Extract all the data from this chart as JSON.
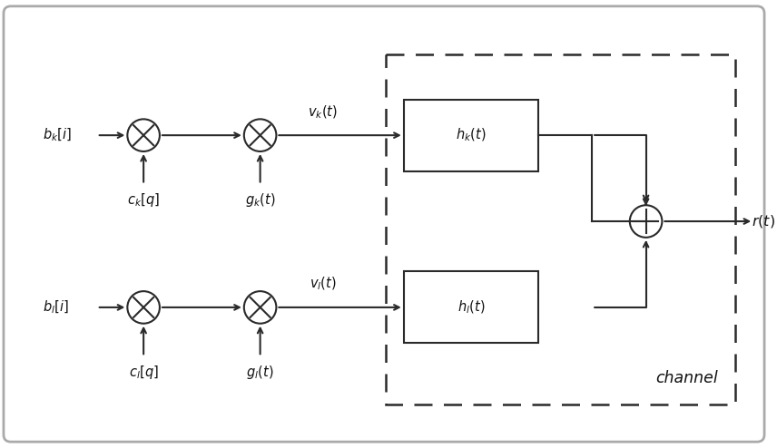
{
  "fig_width": 8.56,
  "fig_height": 4.94,
  "dpi": 100,
  "bg_color": "#ffffff",
  "line_color": "#2a2a2a",
  "text_color": "#111111",
  "b_k_label": "$b_k[i]$",
  "b_l_label": "$b_l[i]$",
  "c_k_label": "$c_k[q]$",
  "c_l_label": "$c_l[q]$",
  "g_k_label": "$g_k(t)$",
  "g_l_label": "$g_l(t)$",
  "h_k_label": "$h_k(t)$",
  "h_l_label": "$h_l(t)$",
  "v_k_label": "$v_k(t)$",
  "v_l_label": "$v_l(t)$",
  "r_label": "$r(t)$",
  "channel_label": "channel"
}
